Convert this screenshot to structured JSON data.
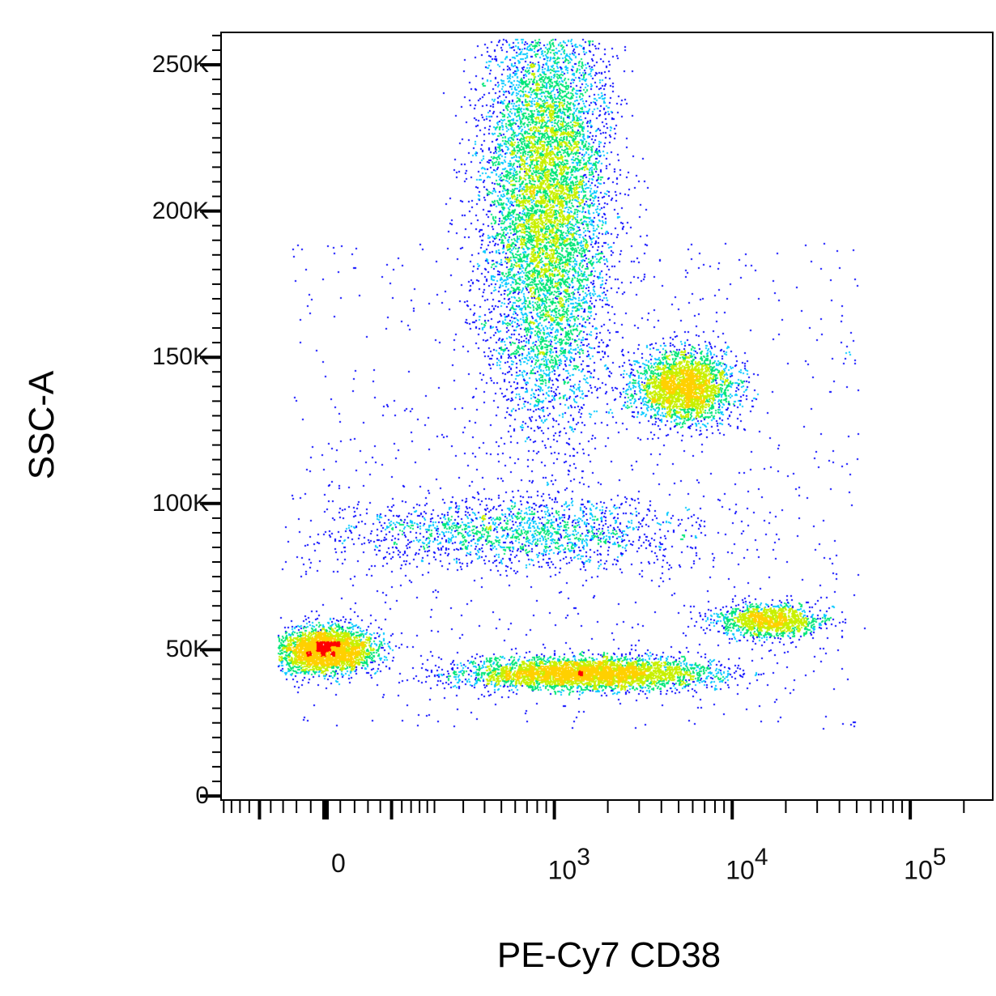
{
  "chart_data": {
    "type": "scatter",
    "subtype": "density-pseudocolor",
    "xlabel": "PE-Cy7 CD38",
    "ylabel": "SSC-A",
    "x_scale": "biexponential",
    "y_scale": "linear",
    "ylim": [
      0,
      262000
    ],
    "xlim": [
      -300,
      200000
    ],
    "y_ticks": [
      {
        "value": 0,
        "label": "0"
      },
      {
        "value": 50000,
        "label": "50K"
      },
      {
        "value": 100000,
        "label": "100K"
      },
      {
        "value": 150000,
        "label": "150K"
      },
      {
        "value": 200000,
        "label": "200K"
      },
      {
        "value": 250000,
        "label": "250K"
      }
    ],
    "x_ticks": [
      {
        "value": 0,
        "label": "0",
        "base": "0",
        "exp": ""
      },
      {
        "value": 1000,
        "label": "10^3",
        "base": "10",
        "exp": "3"
      },
      {
        "value": 10000,
        "label": "10^4",
        "base": "10",
        "exp": "4"
      },
      {
        "value": 100000,
        "label": "10^5",
        "base": "10",
        "exp": "5"
      }
    ],
    "density_colors": [
      "#0000ff",
      "#00c8ff",
      "#00e676",
      "#c8f000",
      "#ffd000",
      "#ff0000"
    ],
    "grid": false,
    "legend": "none",
    "populations": [
      {
        "x_center": 900,
        "y_center": 205000,
        "count": 9000
      },
      {
        "x_center": 5400,
        "y_center": 140000,
        "count": 3000
      },
      {
        "x_center": 0,
        "y_center": 50000,
        "count": 3200
      },
      {
        "x_center": 1500,
        "y_center": 42000,
        "count": 4200
      },
      {
        "x_center": 16000,
        "y_center": 60000,
        "count": 1400
      },
      {
        "x_center": 600,
        "y_center": 90000,
        "count": 1800
      }
    ]
  }
}
